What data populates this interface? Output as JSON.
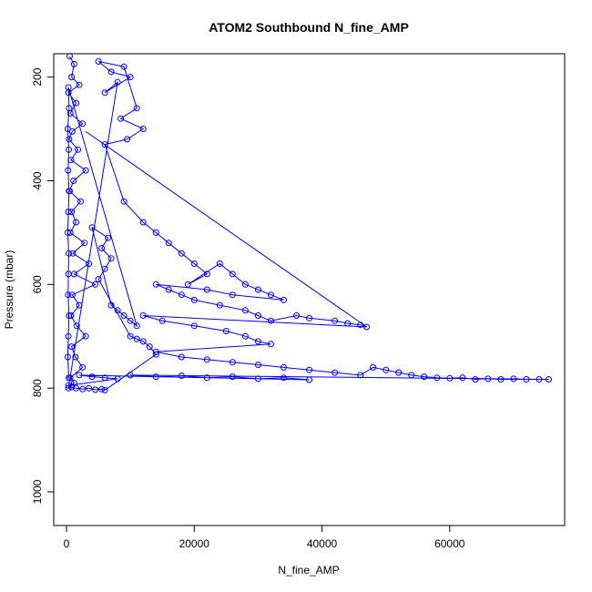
{
  "chart_data": {
    "type": "scatter",
    "title": "ATOM2 Southbound N_fine_AMP",
    "xlabel": "N_fine_AMP",
    "ylabel": "Pressure (mbar)",
    "xlim": [
      -2000,
      78000
    ],
    "ylim": [
      1065,
      155
    ],
    "y_reversed": true,
    "x_ticks": [
      "0",
      "20000",
      "40000",
      "60000"
    ],
    "x_tick_values": [
      0,
      20000,
      40000,
      60000
    ],
    "y_ticks": [
      "200",
      "400",
      "600",
      "800",
      "1000"
    ],
    "y_tick_values": [
      200,
      400,
      600,
      800,
      1000
    ],
    "series_color": "#0000ff",
    "marker": "open-circle",
    "connected_by_lines": true,
    "grid": false,
    "series": [
      {
        "points": [
          [
            500,
            160
          ],
          [
            1200,
            175
          ],
          [
            800,
            200
          ],
          [
            2000,
            215
          ],
          [
            300,
            230
          ],
          [
            1500,
            250
          ],
          [
            600,
            270
          ],
          [
            2500,
            290
          ],
          [
            900,
            305
          ],
          [
            400,
            320
          ],
          [
            1800,
            340
          ],
          [
            700,
            360
          ],
          [
            3000,
            380
          ],
          [
            1100,
            400
          ],
          [
            500,
            420
          ],
          [
            2200,
            440
          ],
          [
            800,
            460
          ],
          [
            1500,
            480
          ],
          [
            600,
            500
          ],
          [
            2800,
            520
          ],
          [
            1000,
            540
          ],
          [
            3500,
            560
          ],
          [
            1200,
            580
          ],
          [
            4500,
            600
          ],
          [
            900,
            620
          ],
          [
            2000,
            640
          ],
          [
            700,
            660
          ],
          [
            1600,
            680
          ],
          [
            3000,
            700
          ],
          [
            800,
            720
          ],
          [
            1400,
            740
          ],
          [
            2500,
            760
          ],
          [
            600,
            780
          ],
          [
            1200,
            790
          ],
          [
            300,
            800
          ],
          [
            8000,
            210
          ],
          [
            6000,
            230
          ],
          [
            10000,
            200
          ],
          [
            7000,
            190
          ],
          [
            5000,
            170
          ],
          [
            9000,
            180
          ],
          [
            11000,
            260
          ],
          [
            8500,
            280
          ],
          [
            12000,
            300
          ],
          [
            9500,
            320
          ],
          [
            6000,
            330
          ],
          [
            9000,
            440
          ],
          [
            12000,
            480
          ],
          [
            14000,
            500
          ],
          [
            16000,
            520
          ],
          [
            18000,
            540
          ],
          [
            20000,
            560
          ],
          [
            22000,
            580
          ],
          [
            19000,
            600
          ],
          [
            24000,
            560
          ],
          [
            26000,
            580
          ],
          [
            28000,
            600
          ],
          [
            30000,
            610
          ],
          [
            32000,
            620
          ],
          [
            34000,
            630
          ],
          [
            26000,
            620
          ],
          [
            22000,
            610
          ],
          [
            14000,
            600
          ],
          [
            16000,
            610
          ],
          [
            18000,
            620
          ],
          [
            20000,
            630
          ],
          [
            24000,
            640
          ],
          [
            28000,
            650
          ],
          [
            30000,
            660
          ],
          [
            32000,
            670
          ],
          [
            36000,
            660
          ],
          [
            38000,
            665
          ],
          [
            42000,
            670
          ],
          [
            44000,
            675
          ],
          [
            46000,
            678
          ],
          [
            47000,
            682
          ],
          [
            12000,
            660
          ],
          [
            15000,
            670
          ],
          [
            20000,
            680
          ],
          [
            25000,
            690
          ],
          [
            28000,
            700
          ],
          [
            30000,
            710
          ],
          [
            32000,
            715
          ],
          [
            14000,
            730
          ],
          [
            18000,
            740
          ],
          [
            22000,
            745
          ],
          [
            26000,
            750
          ],
          [
            30000,
            755
          ],
          [
            34000,
            760
          ],
          [
            38000,
            765
          ],
          [
            42000,
            770
          ],
          [
            46000,
            775
          ],
          [
            48000,
            760
          ],
          [
            50000,
            765
          ],
          [
            52000,
            770
          ],
          [
            54000,
            775
          ],
          [
            56000,
            778
          ],
          [
            58000,
            780
          ],
          [
            60000,
            781
          ],
          [
            62000,
            780
          ],
          [
            64000,
            783
          ],
          [
            66000,
            782
          ],
          [
            68000,
            783
          ],
          [
            70000,
            782
          ],
          [
            72000,
            783
          ],
          [
            74000,
            783
          ],
          [
            75500,
            783
          ],
          [
            10000,
            775
          ],
          [
            14000,
            778
          ],
          [
            18000,
            776
          ],
          [
            22000,
            780
          ],
          [
            26000,
            778
          ],
          [
            30000,
            782
          ],
          [
            34000,
            780
          ],
          [
            38000,
            784
          ],
          [
            2000,
            775
          ],
          [
            4000,
            778
          ],
          [
            6000,
            780
          ],
          [
            8000,
            782
          ],
          [
            300,
            795
          ],
          [
            800,
            798
          ],
          [
            1500,
            800
          ],
          [
            2500,
            802
          ],
          [
            3500,
            800
          ],
          [
            4500,
            803
          ],
          [
            5500,
            802
          ],
          [
            6000,
            804
          ],
          [
            14000,
            735
          ],
          [
            13000,
            720
          ],
          [
            12000,
            710
          ],
          [
            11000,
            705
          ],
          [
            10000,
            700
          ],
          [
            5000,
            590
          ],
          [
            6000,
            570
          ],
          [
            7000,
            550
          ],
          [
            5500,
            530
          ],
          [
            6500,
            510
          ],
          [
            4000,
            490
          ],
          [
            7000,
            640
          ],
          [
            8000,
            650
          ],
          [
            9000,
            660
          ],
          [
            10000,
            670
          ],
          [
            11000,
            680
          ],
          [
            300,
            220
          ],
          [
            400,
            260
          ],
          [
            200,
            300
          ],
          [
            350,
            340
          ],
          [
            250,
            380
          ],
          [
            400,
            420
          ],
          [
            300,
            460
          ],
          [
            200,
            500
          ],
          [
            350,
            540
          ],
          [
            300,
            580
          ],
          [
            250,
            620
          ],
          [
            400,
            660
          ],
          [
            300,
            700
          ],
          [
            200,
            740
          ],
          [
            350,
            780
          ]
        ]
      }
    ],
    "long_segment": [
      [
        3000,
        305
      ],
      [
        47000,
        682
      ]
    ]
  }
}
